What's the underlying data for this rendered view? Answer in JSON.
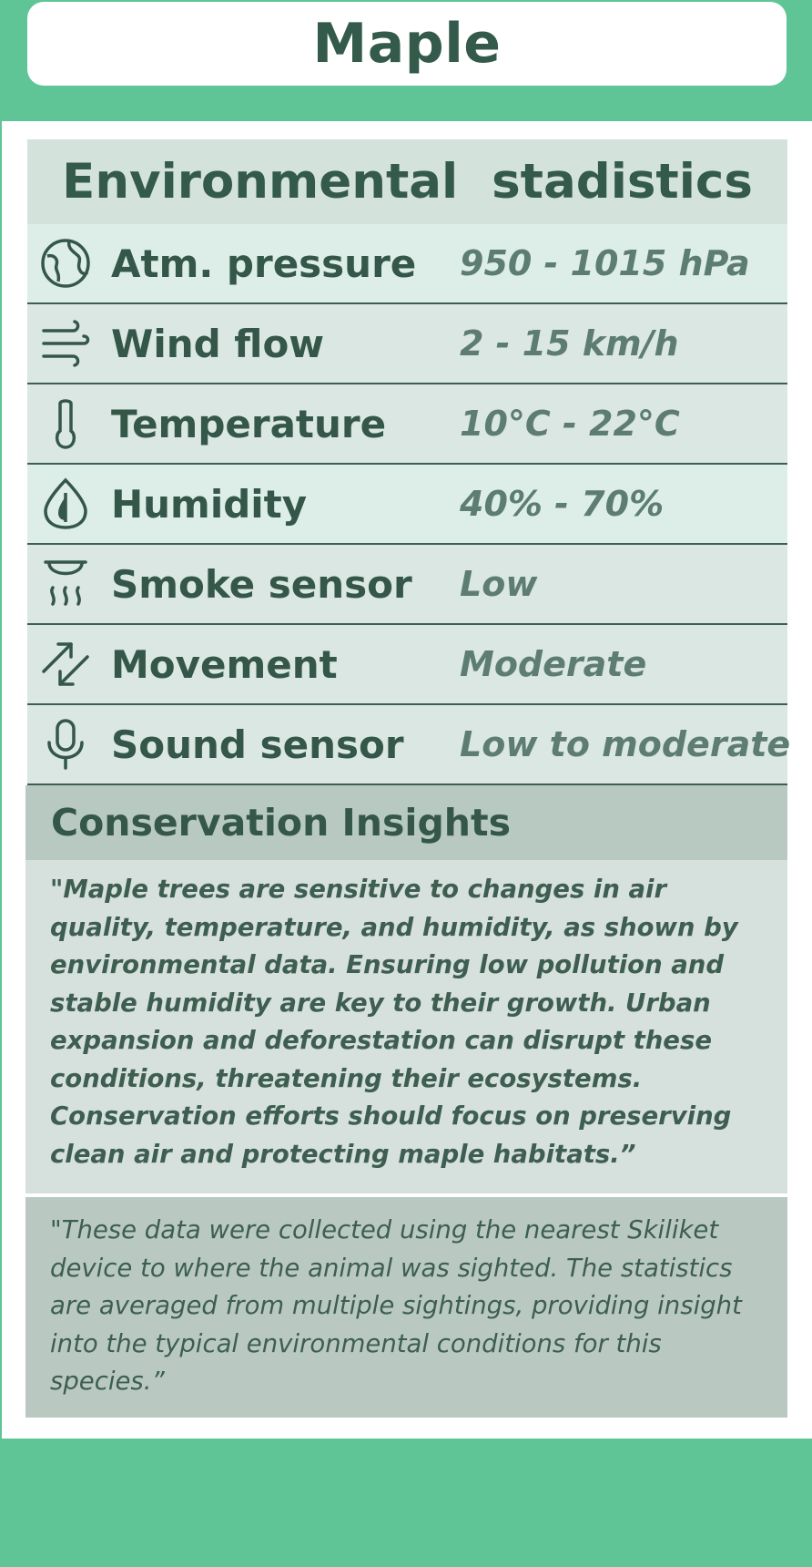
{
  "header": {
    "title": "Maple"
  },
  "stats": {
    "title": "Environmental  stadistics",
    "rows": [
      {
        "icon": "globe-icon",
        "label": "Atm. pressure",
        "value": "950 - 1015 hPa"
      },
      {
        "icon": "wind-icon",
        "label": "Wind flow",
        "value": "2 - 15 km/h"
      },
      {
        "icon": "thermometer-icon",
        "label": "Temperature",
        "value": "10°C - 22°C"
      },
      {
        "icon": "droplet-icon",
        "label": "Humidity",
        "value": "40% - 70%"
      },
      {
        "icon": "smoke-sensor-icon",
        "label": "Smoke sensor",
        "value": "Low"
      },
      {
        "icon": "movement-arrows-icon",
        "label": "Movement",
        "value": "Moderate"
      },
      {
        "icon": "microphone-icon",
        "label": "Sound sensor",
        "value": "Low to moderate"
      }
    ]
  },
  "insights": {
    "title": "Conservation Insights",
    "body": "\"Maple trees are sensitive to changes in air quality, temperature, and humidity, as shown by environmental data. Ensuring low pollution and stable humidity are key to their growth. Urban expansion and deforestation can disrupt these conditions, threatening their ecosystems. Conservation efforts should focus on preserving clean air and protecting maple habitats.”",
    "note": "\"These data were collected using the nearest Skiliket device to where the animal was sighted. The statistics are averaged from multiple sightings, providing insight into the typical environmental conditions for this species.”"
  },
  "colors": {
    "accent_green": "#5fc597",
    "text_dark": "#335a4b",
    "value_text": "#5e7d72"
  }
}
